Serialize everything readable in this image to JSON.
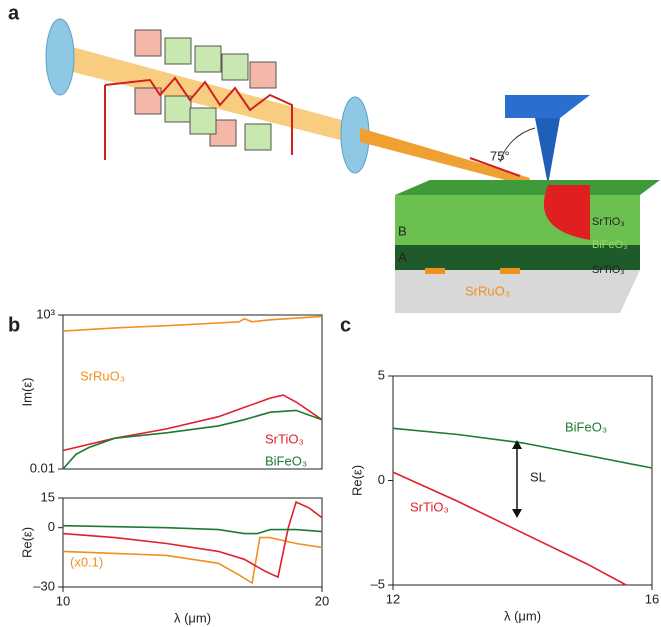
{
  "panels": [
    "a",
    "b",
    "c"
  ],
  "diagram": {
    "angle": "75°",
    "layer_b": "B",
    "layer_a": "A",
    "top_layer": "SrTiO₃",
    "middle_layer": "BiFeO₃",
    "bottom_layer": "SrTiO₃",
    "electrode": "SrRuO₃"
  },
  "chart_data": [
    {
      "type": "line",
      "ylabel": "Im(ε)",
      "ylog": true,
      "xlim": [
        10,
        20
      ],
      "ylim": [
        0.01,
        1000
      ],
      "yticks": [
        0.01,
        {
          "value": 1000,
          "label": "10³"
        }
      ],
      "series": [
        {
          "name": "SrRuO₃",
          "color": "#f0901e",
          "x": [
            10,
            12,
            14,
            16,
            16.8,
            17,
            17.3,
            18,
            20
          ],
          "values": [
            300,
            380,
            450,
            550,
            600,
            750,
            600,
            700,
            900
          ]
        },
        {
          "name": "SrTiO₃",
          "color": "#e0202a",
          "x": [
            10,
            12,
            14,
            16,
            17,
            18,
            18.5,
            19,
            20
          ],
          "values": [
            0.04,
            0.1,
            0.2,
            0.5,
            1,
            2,
            2.5,
            1.5,
            0.4
          ]
        },
        {
          "name": "BiFeO₃",
          "color": "#1f7a32",
          "x": [
            10,
            10.5,
            11,
            12,
            14,
            16,
            17,
            18,
            19,
            20
          ],
          "values": [
            0.01,
            0.03,
            0.05,
            0.1,
            0.15,
            0.25,
            0.4,
            0.7,
            0.8,
            0.4
          ]
        }
      ]
    },
    {
      "type": "line",
      "ylabel": "Re(ε)",
      "xlabel": "λ (μm)",
      "annotation": "(x0.1)",
      "xlim": [
        10,
        20
      ],
      "ylim": [
        -30,
        15
      ],
      "xticks": [
        10,
        20
      ],
      "yticks": [
        {
          "value": -30,
          "label": "–30"
        },
        0,
        15
      ],
      "series": [
        {
          "name": "SrRuO₃",
          "color": "#f0901e",
          "x": [
            10,
            12,
            14,
            16,
            16.8,
            17.3,
            17.6,
            18,
            19,
            20
          ],
          "values": [
            -12,
            -13,
            -14,
            -18,
            -24,
            -28,
            -5,
            -5,
            -8,
            -10
          ]
        },
        {
          "name": "SrTiO₃",
          "color": "#e0202a",
          "x": [
            10,
            12,
            14,
            16,
            17,
            17.8,
            18.3,
            18.7,
            19,
            19.5,
            20
          ],
          "values": [
            -3,
            -5,
            -8,
            -12,
            -16,
            -22,
            -25,
            0,
            13,
            10,
            5
          ]
        },
        {
          "name": "BiFeO₃",
          "color": "#1f7a32",
          "x": [
            10,
            12,
            14,
            16,
            17,
            17.5,
            18,
            19,
            20
          ],
          "values": [
            1,
            0.5,
            0,
            -1,
            -3,
            -3,
            -1,
            -1,
            -2
          ]
        }
      ]
    },
    {
      "type": "line",
      "ylabel": "Re(ε)",
      "xlabel": "λ (μm)",
      "annotation": "SL",
      "xlim": [
        12,
        16
      ],
      "ylim": [
        -5,
        5
      ],
      "xticks": [
        12,
        16
      ],
      "yticks": [
        {
          "value": -5,
          "label": "–5"
        },
        0,
        5
      ],
      "series": [
        {
          "name": "BiFeO₃",
          "color": "#1f7a32",
          "x": [
            12,
            13,
            14,
            15,
            16
          ],
          "values": [
            2.5,
            2.2,
            1.8,
            1.2,
            0.6
          ]
        },
        {
          "name": "SrTiO₃",
          "color": "#e0202a",
          "x": [
            12,
            13,
            14,
            15,
            15.6
          ],
          "values": [
            0.4,
            -1,
            -2.5,
            -4,
            -5
          ]
        }
      ]
    }
  ]
}
